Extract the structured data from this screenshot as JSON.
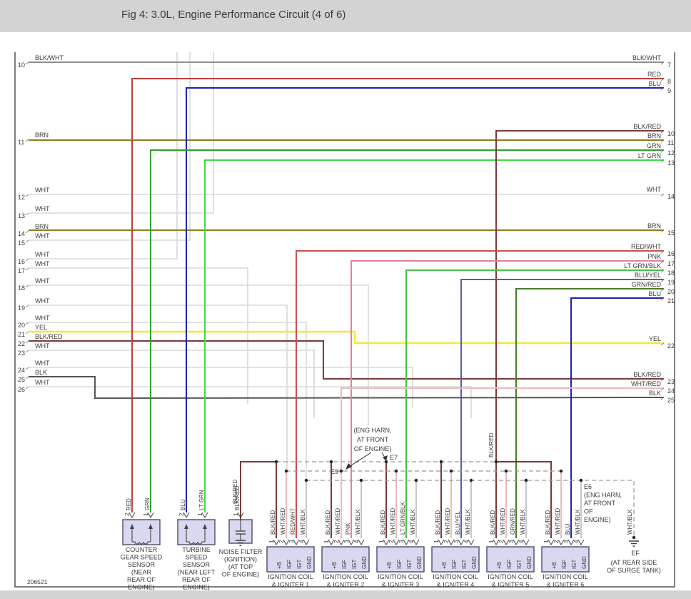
{
  "title": "Fig 4: 3.0L, Engine Performance Circuit (4 of 6)",
  "doc_number": "206521",
  "wire_colors": {
    "BLK/WHT": "#8f8f8f",
    "RED": "#c04040",
    "BLU": "#2222b0",
    "BRN": "#8e7d1e",
    "WHT": "#d9d9d9",
    "GRN": "#30a030",
    "LT GRN": "#44d844",
    "YEL": "#f2e832",
    "BLK/RED": "#7a3a3a",
    "BLK": "#555555",
    "RED/WHT": "#c85050",
    "PNK": "#e080a0",
    "LT GRN/BLK": "#48c048",
    "BLU/YEL": "#5a5ab8",
    "GRN/RED": "#4a7a28",
    "WHT/RED": "#e8bcbc",
    "WHT/BLK": "#c6c6c6"
  },
  "left_connector": {
    "pins": [
      {
        "num": "10",
        "label": "BLK/WHT"
      },
      {
        "num": "11",
        "label": "BRN"
      },
      {
        "num": "12",
        "label": "WHT"
      },
      {
        "num": "13",
        "label": "WHT"
      },
      {
        "num": "14",
        "label": "BRN"
      },
      {
        "num": "15",
        "label": "WHT"
      },
      {
        "num": "16",
        "label": "WHT"
      },
      {
        "num": "17",
        "label": "WHT"
      },
      {
        "num": "18",
        "label": "WHT"
      },
      {
        "num": "19",
        "label": "WHT"
      },
      {
        "num": "20",
        "label": "WHT"
      },
      {
        "num": "21",
        "label": "YEL"
      },
      {
        "num": "22",
        "label": "BLK/RED"
      },
      {
        "num": "23",
        "label": "WHT"
      },
      {
        "num": "24",
        "label": "WHT"
      },
      {
        "num": "25",
        "label": "BLK"
      },
      {
        "num": "26",
        "label": "WHT"
      }
    ]
  },
  "right_connector": {
    "pins": [
      {
        "num": "7",
        "label": "BLK/WHT"
      },
      {
        "num": "8",
        "label": "RED"
      },
      {
        "num": "9",
        "label": "BLU"
      },
      {
        "num": "10",
        "label": "BLK/RED"
      },
      {
        "num": "11",
        "label": "BRN"
      },
      {
        "num": "12",
        "label": "GRN"
      },
      {
        "num": "13",
        "label": "LT GRN"
      },
      {
        "num": "14",
        "label": "WHT"
      },
      {
        "num": "15",
        "label": "BRN"
      },
      {
        "num": "16",
        "label": "RED/WHT"
      },
      {
        "num": "17",
        "label": "PNK"
      },
      {
        "num": "18",
        "label": "LT GRN/BLK"
      },
      {
        "num": "19",
        "label": "BLU/YEL"
      },
      {
        "num": "20",
        "label": "GRN/RED"
      },
      {
        "num": "21",
        "label": "BLU"
      },
      {
        "num": "22",
        "label": "YEL"
      },
      {
        "num": "23",
        "label": "BLK/RED"
      },
      {
        "num": "24",
        "label": "WHT/RED"
      },
      {
        "num": "25",
        "label": "BLK"
      }
    ]
  },
  "components": {
    "counter_gear_sensor": {
      "name_lines": [
        "COUNTER",
        "GEAR SPEED",
        "SENSOR",
        "(NEAR",
        "REAR OF",
        "ENGINE)"
      ],
      "pins": [
        {
          "num": "2",
          "wire": "RED"
        },
        {
          "num": "1",
          "wire": "GRN"
        }
      ]
    },
    "turbine_sensor": {
      "name_lines": [
        "TURBINE",
        "SPEED",
        "SENSOR",
        "(NEAR LEFT",
        "REAR OF",
        "ENGINE)"
      ],
      "pins": [
        {
          "num": "2",
          "wire": "BLU"
        },
        {
          "num": "1",
          "wire": "LT GRN"
        }
      ]
    },
    "noise_filter": {
      "name_lines": [
        "NOISE FILTER",
        "(IGNITION)",
        "(AT TOP",
        "OF ENGINE)"
      ],
      "pins": [
        {
          "num": "1",
          "wire": "BLK/RED"
        }
      ]
    },
    "ignition_coils": [
      {
        "name_lines": [
          "IGNITION COIL",
          "& IGNITER 1"
        ],
        "pins": [
          {
            "num": "1",
            "term": "+B",
            "wire": "BLK/RED"
          },
          {
            "num": "2",
            "term": "IGF",
            "wire": "WHT/RED"
          },
          {
            "num": "3",
            "term": "IGT",
            "wire": "RED/WHT"
          },
          {
            "num": "4",
            "term": "GND",
            "wire": "WHT/BLK"
          }
        ]
      },
      {
        "name_lines": [
          "IGNITION COIL",
          "& IGNITER 2"
        ],
        "pins": [
          {
            "num": "1",
            "term": "+B",
            "wire": "BLK/RED"
          },
          {
            "num": "2",
            "term": "IGF",
            "wire": "WHT/RED"
          },
          {
            "num": "3",
            "term": "IGT",
            "wire": "PNK"
          },
          {
            "num": "4",
            "term": "GND",
            "wire": "WHT/BLK"
          }
        ]
      },
      {
        "name_lines": [
          "IGNITION COIL",
          "& IGNITER 3"
        ],
        "pins": [
          {
            "num": "1",
            "term": "+B",
            "wire": "BLK/RED"
          },
          {
            "num": "2",
            "term": "IGF",
            "wire": "WHT/RED"
          },
          {
            "num": "3",
            "term": "IGT",
            "wire": "LT GRN/BLK"
          },
          {
            "num": "4",
            "term": "GND",
            "wire": "WHT/BLK"
          }
        ]
      },
      {
        "name_lines": [
          "IGNITION COIL",
          "& IGNITER 4"
        ],
        "pins": [
          {
            "num": "1",
            "term": "+B",
            "wire": "BLK/RED"
          },
          {
            "num": "2",
            "term": "IGF",
            "wire": "WHT/RED"
          },
          {
            "num": "3",
            "term": "IGT",
            "wire": "BLU/YEL"
          },
          {
            "num": "4",
            "term": "GND",
            "wire": "WHT/BLK"
          }
        ]
      },
      {
        "name_lines": [
          "IGNITION COIL",
          "& IGNITER 5"
        ],
        "pins": [
          {
            "num": "1",
            "term": "+B",
            "wire": "BLK/RED"
          },
          {
            "num": "2",
            "term": "IGF",
            "wire": "WHT/RED"
          },
          {
            "num": "3",
            "term": "IGT",
            "wire": "GRN/RED"
          },
          {
            "num": "4",
            "term": "GND",
            "wire": "WHT/BLK"
          }
        ]
      },
      {
        "name_lines": [
          "IGNITION COIL",
          "& IGNITER 6"
        ],
        "pins": [
          {
            "num": "1",
            "term": "+B",
            "wire": "BLK/RED"
          },
          {
            "num": "2",
            "term": "IGF",
            "wire": "WHT/RED"
          },
          {
            "num": "3",
            "term": "IGT",
            "wire": "BLU"
          },
          {
            "num": "4",
            "term": "GND",
            "wire": "WHT/BLK"
          }
        ]
      }
    ]
  },
  "annotations": {
    "eng_harn_note": [
      "(ENG HARN,",
      "AT FRONT",
      "OF ENGINE)"
    ],
    "e7": "E7",
    "e9": "E9",
    "e6_block": [
      "E6",
      "(ENG HARN,",
      "AT FRONT",
      "OF",
      "ENGINE)"
    ],
    "feed_wire_label": "BLK/RED",
    "nf_wire_label": "BLK/RED",
    "ef_wire_label": "WHT/BLK",
    "ef": "EF",
    "ef_location": [
      "(AT REAR SIDE",
      "OF SURGE TANK)"
    ]
  }
}
